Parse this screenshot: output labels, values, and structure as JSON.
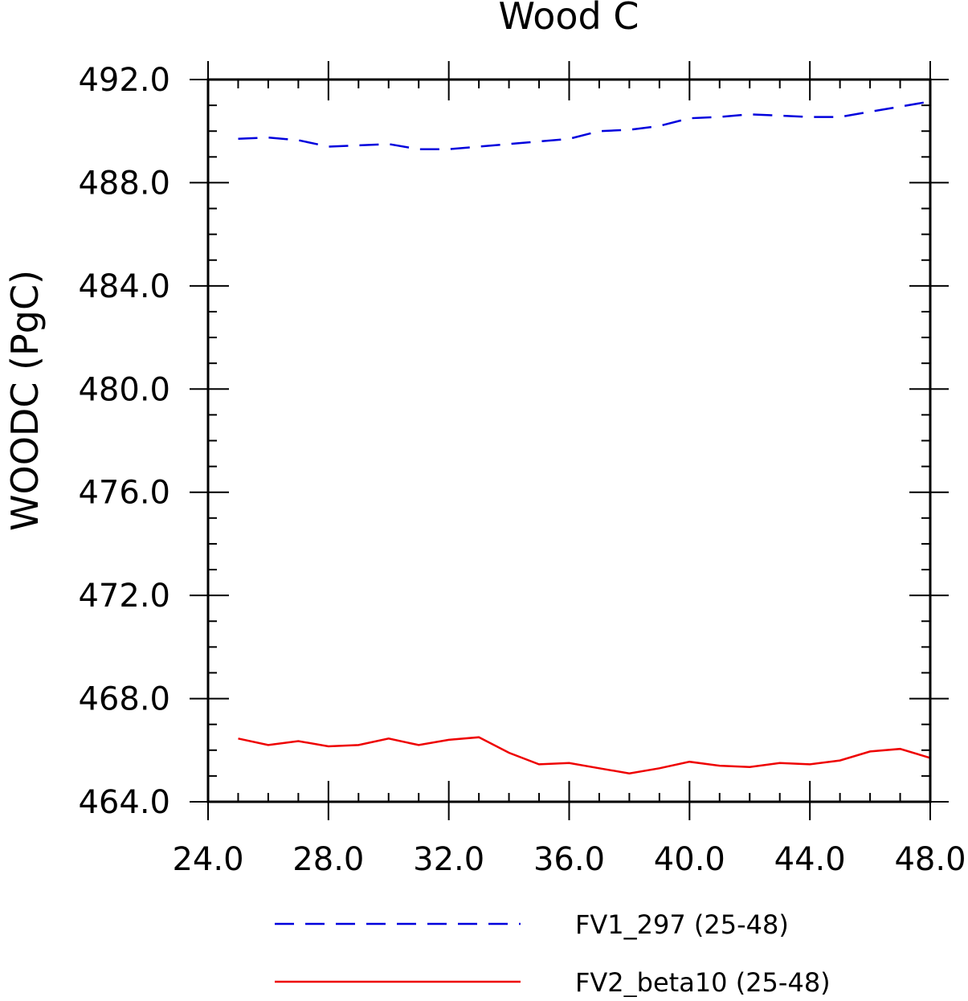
{
  "chart_data": {
    "type": "line",
    "title": "Wood C",
    "xlabel": "",
    "ylabel": "WOODC   (PgC)",
    "xlim": [
      24.0,
      48.0
    ],
    "ylim": [
      464.0,
      492.0
    ],
    "x_ticks": [
      24.0,
      28.0,
      32.0,
      36.0,
      40.0,
      44.0,
      48.0
    ],
    "x_tick_labels": [
      "24.0",
      "28.0",
      "32.0",
      "36.0",
      "40.0",
      "44.0",
      "48.0"
    ],
    "y_ticks": [
      464.0,
      468.0,
      472.0,
      476.0,
      480.0,
      484.0,
      488.0,
      492.0
    ],
    "y_tick_labels": [
      "464.0",
      "468.0",
      "472.0",
      "476.0",
      "480.0",
      "484.0",
      "488.0",
      "492.0"
    ],
    "x_minor_step": 1.0,
    "y_minor_step": 1.0,
    "grid": false,
    "legend_position": "bottom",
    "x": [
      25,
      26,
      27,
      28,
      29,
      30,
      31,
      32,
      33,
      34,
      35,
      36,
      37,
      38,
      39,
      40,
      41,
      42,
      43,
      44,
      45,
      46,
      47,
      48
    ],
    "series": [
      {
        "name": "FV1_297 (25-48)",
        "color": "#0000dd",
        "dash": "dashed",
        "values": [
          489.7,
          489.75,
          489.65,
          489.4,
          489.45,
          489.5,
          489.3,
          489.3,
          489.4,
          489.5,
          489.6,
          489.7,
          490.0,
          490.05,
          490.2,
          490.5,
          490.55,
          490.65,
          490.6,
          490.55,
          490.55,
          490.75,
          490.95,
          491.15
        ]
      },
      {
        "name": "FV2_beta10 (25-48)",
        "color": "#ee0000",
        "dash": "solid",
        "values": [
          466.45,
          466.2,
          466.35,
          466.15,
          466.2,
          466.45,
          466.2,
          466.4,
          466.5,
          465.9,
          465.45,
          465.5,
          465.3,
          465.1,
          465.3,
          465.55,
          465.4,
          465.35,
          465.5,
          465.45,
          465.6,
          465.95,
          466.05,
          465.7
        ]
      }
    ]
  }
}
